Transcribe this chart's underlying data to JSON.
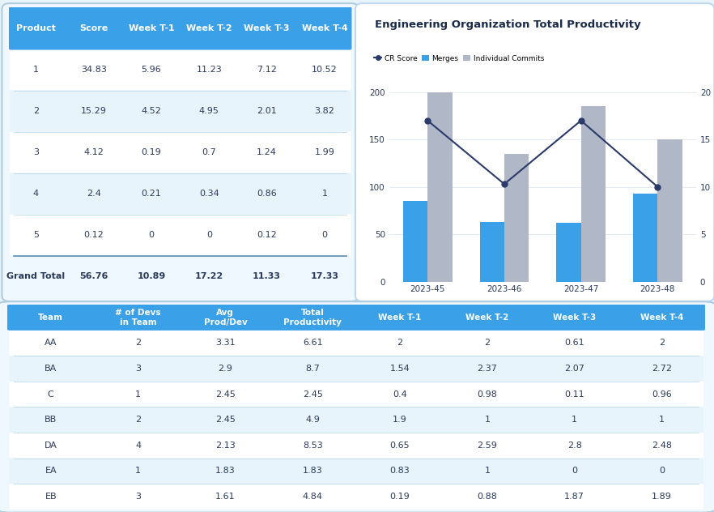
{
  "bg_color": "#e8f4fc",
  "table1": {
    "header": [
      "Product",
      "Score",
      "Week T-1",
      "Week T-2",
      "Week T-3",
      "Week T-4"
    ],
    "rows": [
      [
        "1",
        "34.83",
        "5.96",
        "11.23",
        "7.12",
        "10.52"
      ],
      [
        "2",
        "15.29",
        "4.52",
        "4.95",
        "2.01",
        "3.82"
      ],
      [
        "3",
        "4.12",
        "0.19",
        "0.7",
        "1.24",
        "1.99"
      ],
      [
        "4",
        "2.4",
        "0.21",
        "0.34",
        "0.86",
        "1"
      ],
      [
        "5",
        "0.12",
        "0",
        "0",
        "0.12",
        "0"
      ]
    ],
    "footer": [
      "Grand Total",
      "56.76",
      "10.89",
      "17.22",
      "11.33",
      "17.33"
    ],
    "header_color": "#3aa0e8",
    "row_bg_odd": "#ffffff",
    "row_bg_even": "#e8f4fb",
    "footer_bg": "#ffffff",
    "border_color": "#b8d8ee",
    "text_color_header": "#ffffff",
    "text_color_body": "#2a3a5a",
    "text_color_footer": "#2a3a5a"
  },
  "chart": {
    "title": "Engineering Organization Total Productivity",
    "weeks": [
      "2023-45",
      "2023-46",
      "2023-47",
      "2023-48"
    ],
    "merges": [
      85,
      63,
      62,
      93
    ],
    "individual_commits": [
      200,
      135,
      185,
      150
    ],
    "cr_score": [
      17,
      10.3,
      17,
      10
    ],
    "merge_color": "#3aa0e8",
    "commit_color": "#b0b8c8",
    "line_color": "#2a3a6a",
    "left_ylim": [
      0,
      200
    ],
    "right_ylim": [
      0,
      20
    ],
    "left_yticks": [
      0,
      50,
      100,
      150,
      200
    ],
    "right_yticks": [
      0,
      5,
      10,
      15,
      20
    ]
  },
  "table2": {
    "header": [
      "Team",
      "# of Devs\nin Team",
      "Avg\nProd/Dev",
      "Total\nProductivity",
      "Week T-1",
      "Week T-2",
      "Week T-3",
      "Week T-4"
    ],
    "rows": [
      [
        "AA",
        "2",
        "3.31",
        "6.61",
        "2",
        "2",
        "0.61",
        "2"
      ],
      [
        "BA",
        "3",
        "2.9",
        "8.7",
        "1.54",
        "2.37",
        "2.07",
        "2.72"
      ],
      [
        "C",
        "1",
        "2.45",
        "2.45",
        "0.4",
        "0.98",
        "0.11",
        "0.96"
      ],
      [
        "BB",
        "2",
        "2.45",
        "4.9",
        "1.9",
        "1",
        "1",
        "1"
      ],
      [
        "DA",
        "4",
        "2.13",
        "8.53",
        "0.65",
        "2.59",
        "2.8",
        "2.48"
      ],
      [
        "EA",
        "1",
        "1.83",
        "1.83",
        "0.83",
        "1",
        "0",
        "0"
      ],
      [
        "EB",
        "3",
        "1.61",
        "4.84",
        "0.19",
        "0.88",
        "1.87",
        "1.89"
      ]
    ],
    "header_color": "#3aa0e8",
    "row_bg_odd": "#ffffff",
    "row_bg_even": "#e8f4fb",
    "border_color": "#b8d8ee",
    "text_color_header": "#ffffff",
    "text_color_body": "#2a3a5a"
  }
}
